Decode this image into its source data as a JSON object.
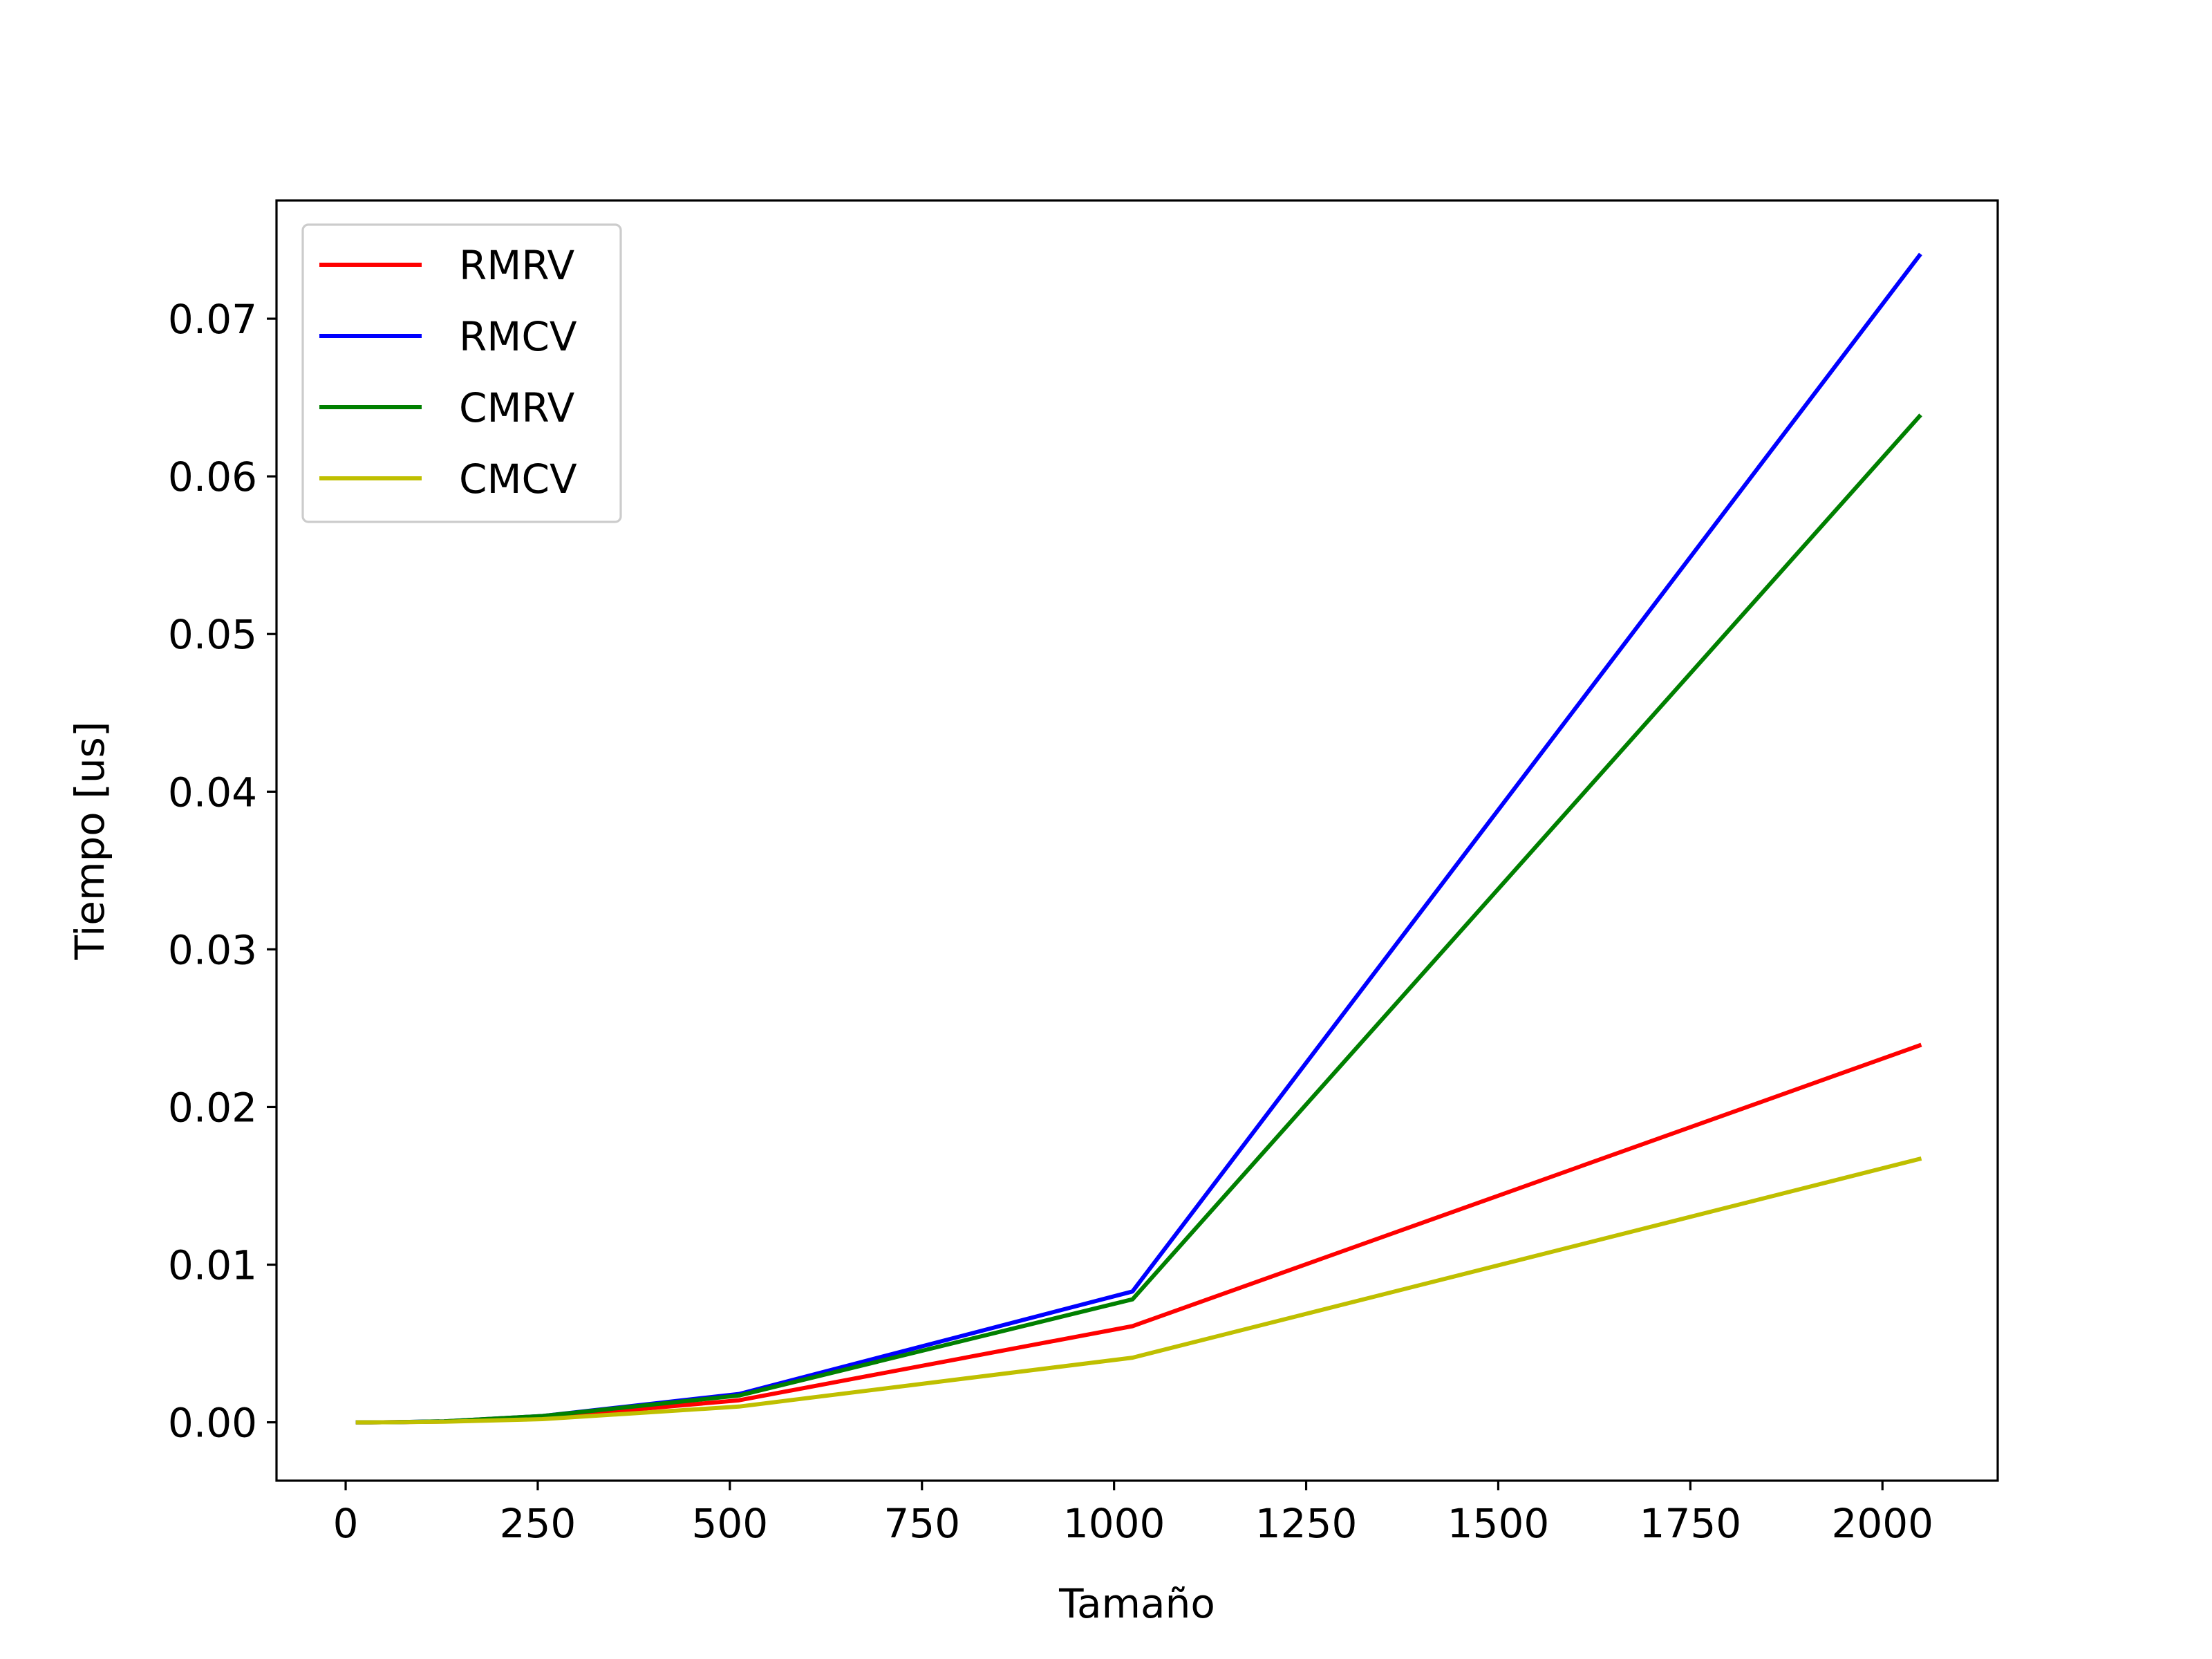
{
  "chart_data": {
    "type": "line",
    "title": "",
    "xlabel": "Tamaño",
    "ylabel": "Tiempo [us]",
    "xlim": [
      -90,
      2150
    ],
    "ylim": [
      -0.0037,
      0.0775
    ],
    "xticks": [
      0,
      250,
      500,
      750,
      1000,
      1250,
      1500,
      1750,
      2000
    ],
    "xtick_labels": [
      "0",
      "250",
      "500",
      "750",
      "1000",
      "1250",
      "1500",
      "1750",
      "2000"
    ],
    "yticks": [
      0.0,
      0.01,
      0.02,
      0.03,
      0.04,
      0.05,
      0.06,
      0.07
    ],
    "ytick_labels": [
      "0.00",
      "0.01",
      "0.02",
      "0.03",
      "0.04",
      "0.05",
      "0.06",
      "0.07"
    ],
    "grid": false,
    "legend_position": "upper-left",
    "x": [
      16,
      32,
      64,
      128,
      256,
      512,
      1024,
      2048
    ],
    "series": [
      {
        "name": "RMRV",
        "color": "#ff0000",
        "values": [
          0.0,
          0.0,
          1e-05,
          5e-05,
          0.0003,
          0.0014,
          0.0061,
          0.0239
        ]
      },
      {
        "name": "RMCV",
        "color": "#0000ff",
        "values": [
          0.0,
          0.0,
          1e-05,
          6e-05,
          0.0004,
          0.0018,
          0.0083,
          0.074
        ]
      },
      {
        "name": "CMRV",
        "color": "#008000",
        "values": [
          0.0,
          0.0,
          1e-05,
          6e-05,
          0.0004,
          0.0017,
          0.0078,
          0.0638
        ]
      },
      {
        "name": "CMCV",
        "color": "#bfbf00",
        "values": [
          0.0,
          0.0,
          1e-05,
          4e-05,
          0.0002,
          0.001,
          0.0041,
          0.0167
        ]
      }
    ]
  }
}
